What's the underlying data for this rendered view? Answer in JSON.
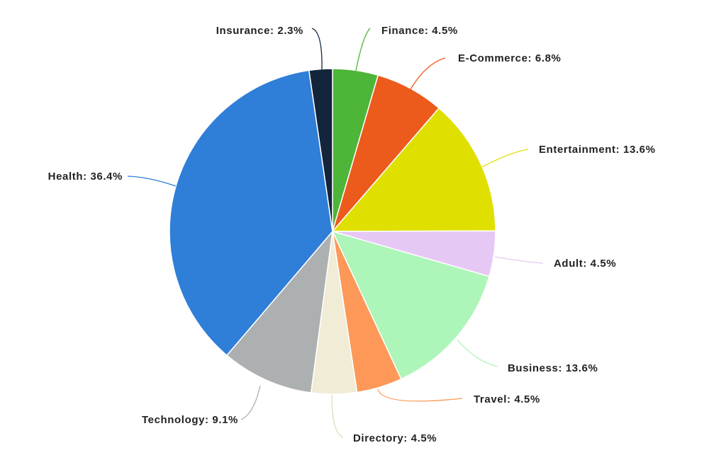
{
  "chart_data": {
    "type": "pie",
    "values": [
      4.5,
      6.8,
      13.6,
      4.5,
      13.6,
      4.5,
      4.5,
      9.1,
      36.4,
      2.3
    ],
    "value_labels": [
      "Finance: 4.5%",
      "E-Commerce: 6.8%",
      "Entertainment: 13.6%",
      "Adult: 4.5%",
      "Business: 13.6%",
      "Travel: 4.5%",
      "Directory: 4.5%",
      "Technology: 9.1%",
      "Health: 36.4%",
      "Insurance: 2.3%"
    ],
    "colors": [
      "#4db538",
      "#ec5a1c",
      "#dfe000",
      "#e6c8f5",
      "#adf5b9",
      "#fd9858",
      "#f0ecd6",
      "#adb0b1",
      "#2f7ed8",
      "#13243b"
    ]
  }
}
